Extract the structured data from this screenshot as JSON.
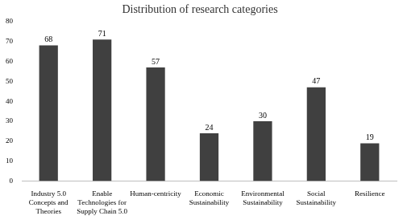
{
  "chart_data": {
    "type": "bar",
    "title": "Distribution of research categories",
    "categories": [
      "Industry 5.0 Concepts and Theories",
      "Enable Technologies for Supply Chain 5.0",
      "Human-centricity",
      "Economic Sustainability",
      "Environmental Sustainability",
      "Social Sustainability",
      "Resilience"
    ],
    "values": [
      68,
      71,
      57,
      24,
      30,
      47,
      19
    ],
    "color": "#404040",
    "ylim": [
      0,
      80
    ],
    "yticks": [
      0,
      10,
      20,
      30,
      40,
      50,
      60,
      70,
      80
    ],
    "grid": false,
    "data_labels": true
  }
}
